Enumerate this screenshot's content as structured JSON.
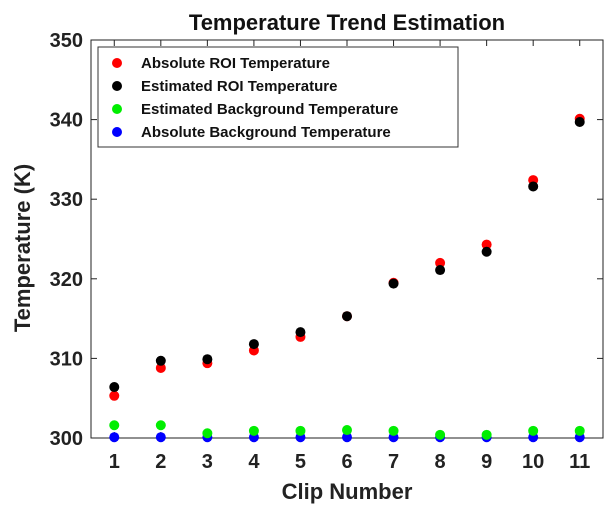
{
  "chart_data": {
    "type": "scatter",
    "title": "Temperature Trend Estimation",
    "xlabel": "Clip Number",
    "ylabel": "Temperature (K)",
    "x": [
      1,
      2,
      3,
      4,
      5,
      6,
      7,
      8,
      9,
      10,
      11
    ],
    "xlim": [
      0.5,
      11.5
    ],
    "ylim": [
      300,
      350
    ],
    "yticks": [
      300,
      310,
      320,
      330,
      340,
      350
    ],
    "grid": false,
    "legend_position": "top-left",
    "series": [
      {
        "name": "Absolute ROI Temperature",
        "color": "#ff0000",
        "values": [
          305.3,
          308.8,
          309.4,
          311.0,
          312.7,
          315.3,
          319.5,
          322.0,
          324.3,
          332.4,
          340.1
        ]
      },
      {
        "name": "Estimated ROI Temperature",
        "color": "#000000",
        "values": [
          306.4,
          309.7,
          309.9,
          311.8,
          313.3,
          315.3,
          319.4,
          321.1,
          323.4,
          331.6,
          339.7
        ]
      },
      {
        "name": "Estimated Background Temperature",
        "color": "#00ee00",
        "values": [
          301.6,
          301.6,
          300.6,
          300.9,
          300.9,
          301.0,
          300.9,
          300.4,
          300.4,
          300.9,
          300.9
        ]
      },
      {
        "name": "Absolute Background Temperature",
        "color": "#0000ff",
        "values": [
          300.1,
          300.1,
          300.1,
          300.1,
          300.1,
          300.1,
          300.1,
          300.1,
          300.1,
          300.1,
          300.1
        ]
      }
    ]
  }
}
